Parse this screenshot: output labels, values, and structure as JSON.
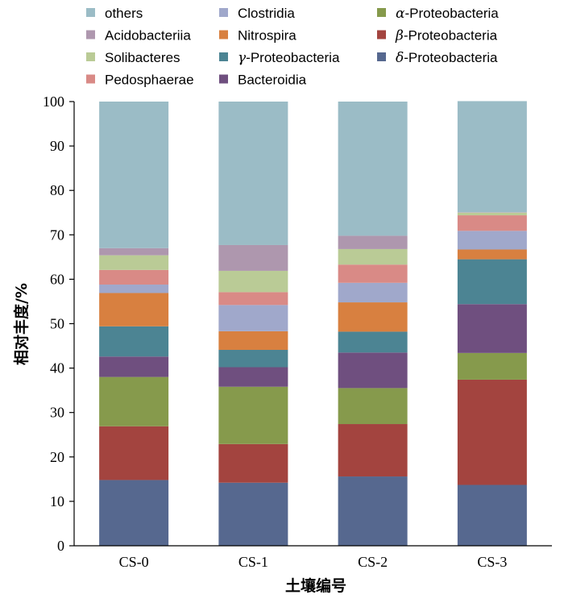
{
  "chart_data": {
    "type": "bar",
    "stacked": true,
    "xlabel": "土壤编号",
    "ylabel": "相对丰度/%",
    "ylim": [
      0,
      100
    ],
    "yticks": [
      0,
      10,
      20,
      30,
      40,
      50,
      60,
      70,
      80,
      90,
      100
    ],
    "categories": [
      "CS-0",
      "CS-1",
      "CS-2",
      "CS-3"
    ],
    "legend_position": "top",
    "series": [
      {
        "name": "δ-Proteobacteria",
        "color": "#56688F",
        "values": [
          14.8,
          14.2,
          15.6,
          13.7
        ]
      },
      {
        "name": "β-Proteobacteria",
        "color": "#A3443F",
        "values": [
          12.1,
          8.7,
          11.8,
          23.7
        ]
      },
      {
        "name": "α-Proteobacteria",
        "color": "#869A4C",
        "values": [
          11.1,
          12.9,
          8.1,
          6.0
        ]
      },
      {
        "name": "Bacteroidia",
        "color": "#6F4F7F",
        "values": [
          4.6,
          4.4,
          8.0,
          11.0
        ]
      },
      {
        "name": "γ-Proteobacteria",
        "color": "#4C8493",
        "values": [
          6.8,
          3.9,
          4.7,
          10.1
        ]
      },
      {
        "name": "Nitrospira",
        "color": "#D88040",
        "values": [
          7.5,
          4.2,
          6.6,
          2.2
        ]
      },
      {
        "name": "Clostridia",
        "color": "#A0A8CB",
        "values": [
          1.9,
          5.9,
          4.4,
          4.2
        ]
      },
      {
        "name": "Pedosphaerae",
        "color": "#D98A86",
        "values": [
          3.3,
          2.9,
          4.1,
          3.5
        ]
      },
      {
        "name": "Solibacteres",
        "color": "#BACB96",
        "values": [
          3.3,
          4.8,
          3.5,
          0.6
        ]
      },
      {
        "name": "Acidobacteriia",
        "color": "#AE97AE",
        "values": [
          1.6,
          5.8,
          3.0,
          0.1
        ]
      },
      {
        "name": "others",
        "color": "#9BBCC6",
        "values": [
          33.0,
          32.3,
          30.2,
          25.0
        ]
      }
    ],
    "legend_order": [
      "others",
      "Clostridia",
      "α-Proteobacteria",
      "Acidobacteriia",
      "Nitrospira",
      "β-Proteobacteria",
      "Solibacteres",
      "γ-Proteobacteria",
      "δ-Proteobacteria",
      "Pedosphaerae",
      "Bacteroidia"
    ]
  }
}
